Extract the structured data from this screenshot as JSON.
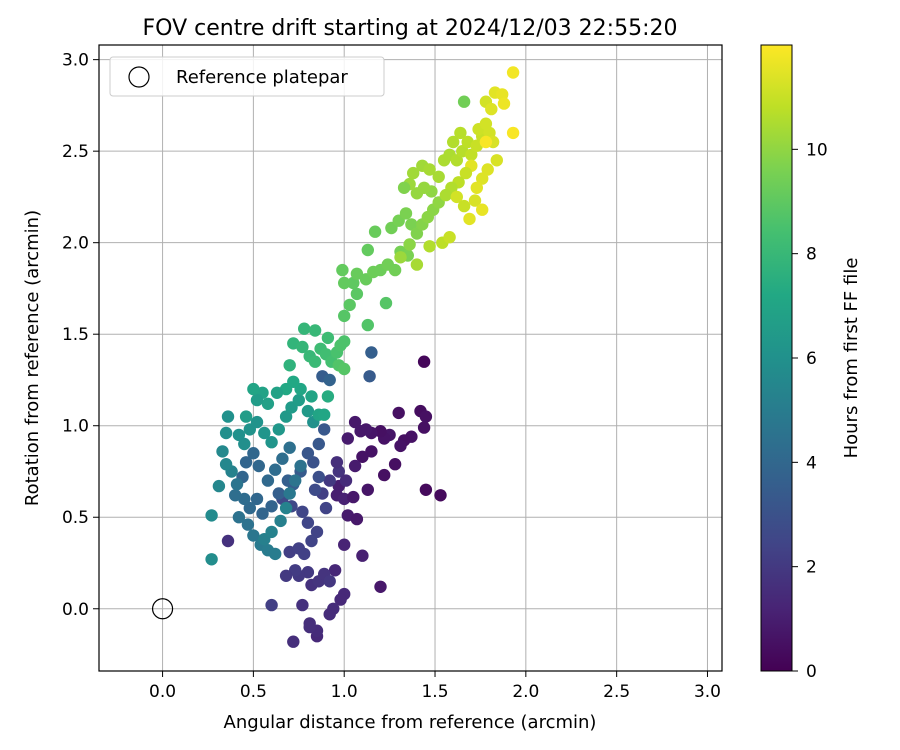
{
  "chart_data": {
    "type": "scatter",
    "title": "FOV centre drift starting at 2024/12/03 22:55:20",
    "xlabel": "Angular distance from reference (arcmin)",
    "ylabel": "Rotation from reference (arcmin)",
    "xlim": [
      -0.35,
      3.08
    ],
    "ylim": [
      -0.34,
      3.08
    ],
    "xticks": [
      0.0,
      0.5,
      1.0,
      1.5,
      2.0,
      2.5,
      3.0
    ],
    "xtick_labels": [
      "0.0",
      "0.5",
      "1.0",
      "1.5",
      "2.0",
      "2.5",
      "3.0"
    ],
    "yticks": [
      0.0,
      0.5,
      1.0,
      1.5,
      2.0,
      2.5,
      3.0
    ],
    "ytick_labels": [
      "0.0",
      "0.5",
      "1.0",
      "1.5",
      "2.0",
      "2.5",
      "3.0"
    ],
    "grid": true,
    "legend": {
      "position": "top-left",
      "entries": [
        "Reference platepar"
      ]
    },
    "reference_point": {
      "x": 0.0,
      "y": 0.0
    },
    "colorbar": {
      "label": "Hours from first FF file",
      "range": [
        0,
        12
      ],
      "ticks": [
        0,
        2,
        4,
        6,
        8,
        10
      ],
      "tick_labels": [
        "0",
        "2",
        "4",
        "6",
        "8",
        "10"
      ],
      "colormap": "viridis"
    },
    "point_columns": [
      "x",
      "y",
      "hours"
    ],
    "points": [
      [
        1.44,
        1.35,
        0.2
      ],
      [
        1.45,
        0.65,
        0.3
      ],
      [
        1.53,
        0.62,
        0.3
      ],
      [
        1.42,
        1.08,
        0.4
      ],
      [
        1.45,
        1.05,
        0.5
      ],
      [
        1.44,
        0.99,
        0.5
      ],
      [
        1.37,
        0.94,
        0.6
      ],
      [
        1.33,
        0.92,
        0.5
      ],
      [
        1.31,
        0.89,
        0.6
      ],
      [
        1.3,
        1.07,
        0.5
      ],
      [
        1.25,
        0.95,
        0.7
      ],
      [
        1.22,
        0.93,
        0.6
      ],
      [
        1.2,
        0.97,
        0.5
      ],
      [
        1.15,
        0.96,
        0.7
      ],
      [
        1.12,
        0.98,
        0.8
      ],
      [
        1.09,
        0.97,
        0.8
      ],
      [
        1.06,
        1.02,
        0.8
      ],
      [
        1.02,
        0.93,
        0.9
      ],
      [
        1.15,
        0.86,
        0.6
      ],
      [
        1.1,
        0.83,
        0.6
      ],
      [
        1.06,
        0.78,
        0.9
      ],
      [
        1.22,
        0.73,
        0.5
      ],
      [
        1.28,
        0.79,
        0.5
      ],
      [
        1.13,
        0.65,
        0.7
      ],
      [
        0.97,
        0.67,
        1.0
      ],
      [
        0.96,
        0.62,
        1.0
      ],
      [
        1.0,
        0.6,
        1.1
      ],
      [
        1.05,
        0.61,
        0.8
      ],
      [
        1.02,
        0.51,
        0.9
      ],
      [
        1.07,
        0.49,
        0.8
      ],
      [
        1.2,
        0.12,
        0.8
      ],
      [
        1.1,
        0.29,
        1.1
      ],
      [
        1.0,
        0.35,
        1.2
      ],
      [
        0.95,
        0.21,
        1.3
      ],
      [
        1.0,
        0.08,
        1.4
      ],
      [
        0.98,
        0.05,
        1.4
      ],
      [
        0.94,
        0.0,
        1.5
      ],
      [
        0.92,
        -0.03,
        1.5
      ],
      [
        0.85,
        -0.15,
        1.4
      ],
      [
        0.85,
        -0.12,
        1.5
      ],
      [
        0.81,
        -0.08,
        1.6
      ],
      [
        0.81,
        -0.1,
        1.6
      ],
      [
        0.72,
        -0.18,
        1.6
      ],
      [
        0.77,
        0.02,
        1.7
      ],
      [
        0.82,
        0.13,
        1.7
      ],
      [
        0.86,
        0.15,
        1.8
      ],
      [
        0.89,
        0.19,
        1.8
      ],
      [
        0.92,
        0.15,
        1.9
      ],
      [
        0.8,
        0.2,
        2.0
      ],
      [
        0.75,
        0.18,
        2.0
      ],
      [
        0.73,
        0.21,
        2.1
      ],
      [
        0.68,
        0.18,
        2.0
      ],
      [
        0.6,
        0.02,
        2.2
      ],
      [
        0.7,
        0.31,
        2.2
      ],
      [
        0.75,
        0.33,
        2.3
      ],
      [
        0.78,
        0.3,
        2.3
      ],
      [
        0.82,
        0.37,
        2.4
      ],
      [
        0.85,
        0.42,
        2.4
      ],
      [
        0.8,
        0.47,
        2.5
      ],
      [
        0.77,
        0.53,
        2.5
      ],
      [
        0.71,
        0.56,
        2.6
      ],
      [
        0.66,
        0.6,
        2.6
      ],
      [
        0.9,
        0.55,
        2.4
      ],
      [
        0.88,
        0.63,
        2.2
      ],
      [
        0.92,
        0.7,
        2.0
      ],
      [
        0.97,
        0.75,
        1.8
      ],
      [
        1.01,
        0.7,
        1.5
      ],
      [
        0.96,
        0.8,
        1.6
      ],
      [
        0.84,
        0.65,
        2.7
      ],
      [
        0.86,
        0.72,
        2.9
      ],
      [
        0.83,
        0.8,
        3.0
      ],
      [
        0.8,
        0.85,
        3.2
      ],
      [
        0.86,
        0.9,
        3.3
      ],
      [
        0.89,
        0.98,
        3.3
      ],
      [
        0.76,
        0.75,
        3.4
      ],
      [
        0.72,
        0.68,
        3.5
      ],
      [
        0.69,
        0.7,
        3.6
      ],
      [
        0.64,
        0.63,
        3.6
      ],
      [
        0.6,
        0.56,
        3.8
      ],
      [
        0.55,
        0.52,
        3.9
      ],
      [
        0.52,
        0.6,
        4.0
      ],
      [
        0.48,
        0.55,
        4.1
      ],
      [
        0.45,
        0.6,
        4.2
      ],
      [
        0.4,
        0.62,
        4.3
      ],
      [
        0.36,
        0.37,
        1.7
      ],
      [
        0.42,
        0.5,
        4.5
      ],
      [
        0.47,
        0.46,
        4.5
      ],
      [
        0.5,
        0.4,
        4.7
      ],
      [
        0.54,
        0.35,
        4.9
      ],
      [
        0.58,
        0.32,
        5.0
      ],
      [
        0.62,
        0.3,
        5.0
      ],
      [
        0.56,
        0.38,
        5.2
      ],
      [
        0.6,
        0.42,
        5.3
      ],
      [
        0.65,
        0.48,
        5.2
      ],
      [
        0.68,
        0.55,
        5.3
      ],
      [
        0.7,
        0.63,
        4.8
      ],
      [
        0.73,
        0.7,
        4.6
      ],
      [
        0.76,
        0.78,
        4.5
      ],
      [
        0.7,
        0.88,
        4.4
      ],
      [
        0.66,
        0.82,
        4.3
      ],
      [
        0.62,
        0.76,
        4.2
      ],
      [
        0.58,
        0.7,
        4.1
      ],
      [
        0.53,
        0.78,
        4.0
      ],
      [
        0.5,
        0.85,
        4.0
      ],
      [
        0.46,
        0.8,
        3.9
      ],
      [
        0.44,
        0.72,
        3.9
      ],
      [
        0.41,
        0.68,
        4.6
      ],
      [
        0.38,
        0.75,
        5.3
      ],
      [
        0.35,
        0.79,
        5.5
      ],
      [
        0.33,
        0.86,
        5.6
      ],
      [
        0.31,
        0.67,
        5.5
      ],
      [
        0.27,
        0.51,
        5.7
      ],
      [
        0.27,
        0.27,
        5.8
      ],
      [
        0.35,
        0.96,
        5.9
      ],
      [
        0.36,
        1.05,
        6.0
      ],
      [
        0.42,
        0.95,
        6.0
      ],
      [
        0.45,
        0.9,
        5.9
      ],
      [
        0.48,
        0.98,
        6.1
      ],
      [
        0.52,
        1.02,
        6.1
      ],
      [
        0.56,
        0.96,
        6.2
      ],
      [
        0.6,
        0.91,
        6.2
      ],
      [
        0.64,
        0.98,
        6.3
      ],
      [
        0.68,
        1.05,
        6.4
      ],
      [
        0.71,
        1.1,
        6.5
      ],
      [
        0.75,
        1.14,
        6.6
      ],
      [
        0.8,
        1.08,
        6.4
      ],
      [
        0.83,
        1.02,
        6.0
      ],
      [
        0.86,
        1.06,
        7.0
      ],
      [
        0.89,
        1.06,
        7.1
      ],
      [
        0.91,
        1.16,
        7.4
      ],
      [
        0.82,
        1.16,
        7.0
      ],
      [
        0.76,
        1.2,
        7.1
      ],
      [
        0.72,
        1.24,
        7.2
      ],
      [
        0.68,
        1.2,
        7.2
      ],
      [
        0.63,
        1.18,
        6.9
      ],
      [
        0.58,
        1.12,
        6.8
      ],
      [
        0.55,
        1.18,
        6.9
      ],
      [
        0.52,
        1.14,
        6.6
      ],
      [
        0.46,
        1.05,
        6.6
      ],
      [
        0.5,
        1.2,
        7.0
      ],
      [
        0.7,
        1.33,
        7.7
      ],
      [
        0.72,
        1.45,
        7.8
      ],
      [
        0.77,
        1.43,
        7.9
      ],
      [
        0.81,
        1.38,
        8.0
      ],
      [
        0.84,
        1.35,
        8.1
      ],
      [
        0.87,
        1.42,
        8.2
      ],
      [
        0.9,
        1.39,
        8.3
      ],
      [
        0.93,
        1.35,
        8.4
      ],
      [
        0.96,
        1.4,
        8.5
      ],
      [
        0.98,
        1.44,
        8.6
      ],
      [
        1.0,
        1.46,
        8.6
      ],
      [
        0.97,
        1.33,
        8.7
      ],
      [
        1.0,
        1.31,
        8.8
      ],
      [
        0.78,
        1.53,
        7.9
      ],
      [
        0.84,
        1.52,
        8.0
      ],
      [
        0.91,
        1.48,
        8.2
      ],
      [
        0.88,
        1.27,
        3.5
      ],
      [
        0.92,
        1.25,
        3.8
      ],
      [
        1.15,
        1.4,
        3.6
      ],
      [
        1.14,
        1.27,
        3.4
      ],
      [
        1.13,
        1.55,
        8.7
      ],
      [
        1.0,
        1.6,
        8.8
      ],
      [
        1.03,
        1.66,
        8.9
      ],
      [
        1.07,
        1.72,
        8.9
      ],
      [
        1.05,
        1.78,
        9.0
      ],
      [
        1.0,
        1.78,
        9.1
      ],
      [
        0.99,
        1.85,
        9.1
      ],
      [
        1.07,
        1.83,
        9.2
      ],
      [
        1.12,
        1.8,
        9.2
      ],
      [
        1.16,
        1.84,
        9.3
      ],
      [
        1.2,
        1.85,
        9.3
      ],
      [
        1.24,
        1.88,
        9.4
      ],
      [
        1.28,
        1.85,
        9.4
      ],
      [
        1.31,
        1.95,
        9.5
      ],
      [
        1.35,
        1.93,
        9.6
      ],
      [
        1.13,
        1.96,
        9.1
      ],
      [
        1.17,
        2.06,
        9.2
      ],
      [
        1.23,
        1.67,
        8.8
      ],
      [
        1.26,
        2.08,
        9.4
      ],
      [
        1.3,
        2.12,
        9.5
      ],
      [
        1.34,
        2.16,
        9.6
      ],
      [
        1.37,
        2.1,
        9.6
      ],
      [
        1.4,
        2.05,
        9.7
      ],
      [
        1.43,
        2.1,
        9.8
      ],
      [
        1.46,
        2.14,
        9.9
      ],
      [
        1.49,
        2.18,
        9.9
      ],
      [
        1.52,
        2.22,
        10.0
      ],
      [
        1.48,
        2.28,
        10.0
      ],
      [
        1.44,
        2.3,
        10.1
      ],
      [
        1.4,
        2.27,
        10.1
      ],
      [
        1.36,
        2.32,
        10.2
      ],
      [
        1.33,
        2.3,
        9.7
      ],
      [
        1.38,
        2.38,
        10.3
      ],
      [
        1.43,
        2.42,
        10.3
      ],
      [
        1.47,
        2.4,
        10.4
      ],
      [
        1.52,
        2.36,
        10.4
      ],
      [
        1.55,
        2.45,
        10.5
      ],
      [
        1.58,
        2.48,
        10.5
      ],
      [
        1.62,
        2.45,
        10.6
      ],
      [
        1.65,
        2.5,
        10.7
      ],
      [
        1.6,
        2.55,
        10.6
      ],
      [
        1.64,
        2.6,
        10.7
      ],
      [
        1.68,
        2.55,
        10.8
      ],
      [
        1.7,
        2.48,
        10.9
      ],
      [
        1.73,
        2.53,
        11.0
      ],
      [
        1.76,
        2.58,
        11.0
      ],
      [
        1.74,
        2.62,
        11.1
      ],
      [
        1.78,
        2.65,
        11.2
      ],
      [
        1.8,
        2.6,
        11.2
      ],
      [
        1.82,
        2.55,
        11.3
      ],
      [
        1.84,
        2.45,
        11.3
      ],
      [
        1.79,
        2.4,
        11.4
      ],
      [
        1.76,
        2.35,
        11.4
      ],
      [
        1.73,
        2.3,
        11.5
      ],
      [
        1.7,
        2.42,
        11.5
      ],
      [
        1.67,
        2.38,
        11.0
      ],
      [
        1.63,
        2.33,
        10.8
      ],
      [
        1.59,
        2.3,
        10.6
      ],
      [
        1.56,
        2.26,
        10.5
      ],
      [
        1.62,
        2.25,
        11.2
      ],
      [
        1.66,
        2.2,
        11.0
      ],
      [
        1.72,
        2.23,
        11.3
      ],
      [
        1.76,
        2.18,
        11.6
      ],
      [
        1.69,
        2.13,
        11.5
      ],
      [
        1.66,
        2.77,
        9.4
      ],
      [
        1.78,
        2.77,
        11.2
      ],
      [
        1.81,
        2.73,
        11.4
      ],
      [
        1.83,
        2.82,
        11.5
      ],
      [
        1.87,
        2.81,
        11.6
      ],
      [
        1.88,
        2.76,
        11.7
      ],
      [
        1.93,
        2.93,
        11.8
      ],
      [
        1.93,
        2.6,
        11.9
      ],
      [
        1.78,
        2.55,
        11.9
      ],
      [
        1.54,
        2.0,
        10.8
      ],
      [
        1.58,
        2.03,
        11.0
      ],
      [
        1.47,
        1.98,
        10.6
      ],
      [
        1.4,
        1.88,
        10.4
      ],
      [
        1.36,
        1.99,
        9.9
      ],
      [
        1.31,
        1.92,
        10.2
      ]
    ]
  }
}
